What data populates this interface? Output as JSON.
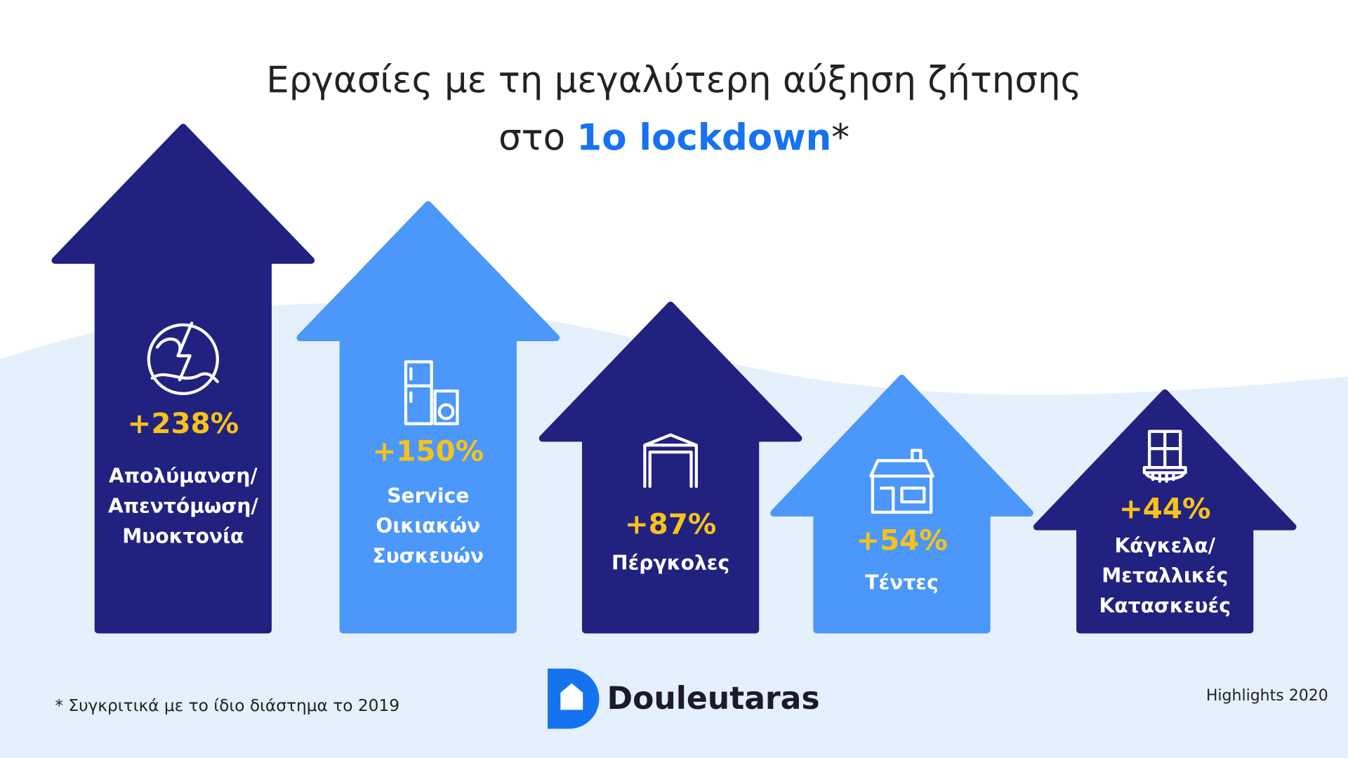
{
  "title": {
    "line1": "Εργασίες με τη μεγαλύτερη αύξηση ζήτησης",
    "line2_prefix": "στο",
    "line2_highlight": "1ο lockdown",
    "line2_suffix": "*"
  },
  "items": [
    {
      "percent": "+238%",
      "label": [
        "Απολύμανση/",
        "Απεντόμωση/",
        "Μυοκτονία"
      ]
    },
    {
      "percent": "+150%",
      "label": [
        "Service",
        "Οικιακών",
        "Συσκευών"
      ]
    },
    {
      "percent": "+87%",
      "label": [
        "Πέργκολες"
      ]
    },
    {
      "percent": "+54%",
      "label": [
        "Τέντες"
      ]
    },
    {
      "percent": "+44%",
      "label": [
        "Κάγκελα/",
        "Μεταλλικές",
        "Κατασκευές"
      ]
    }
  ],
  "footnote": "* Συγκριτικά με το ίδιο διάστημα το 2019",
  "brand": "Douleutaras",
  "highlights": "Highlights 2020"
}
